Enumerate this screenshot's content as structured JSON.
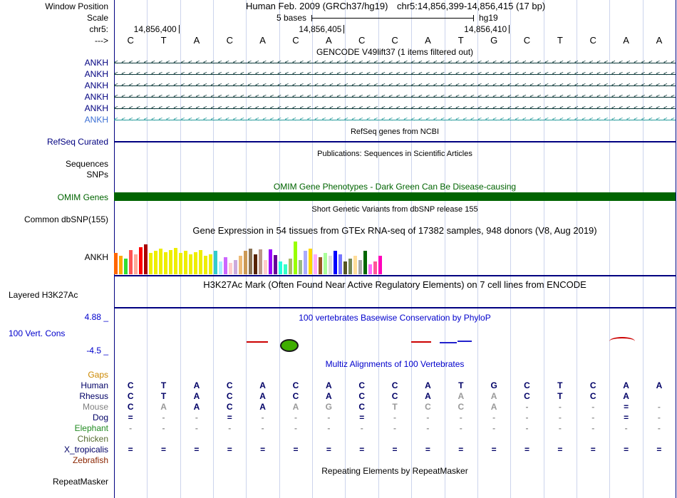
{
  "header": {
    "window_position_label": "Window Position",
    "assembly": "Human Feb. 2009 (GRCh37/hg19)",
    "position": "chr5:14,856,399-14,856,415 (17 bp)",
    "scale_label": "Scale",
    "scale_value": "5 bases",
    "scale_genome": "hg19",
    "chrom_label": "chr5:",
    "coords": [
      "14,856,400",
      "14,856,405",
      "14,856,410"
    ],
    "strand_label": "--->"
  },
  "sequence": [
    "C",
    "T",
    "A",
    "C",
    "A",
    "C",
    "A",
    "C",
    "C",
    "A",
    "T",
    "G",
    "C",
    "T",
    "C",
    "A",
    "A"
  ],
  "gencode": {
    "title": "GENCODE V49lift37 (1 items filtered out)",
    "transcripts": [
      {
        "label": "ANKH",
        "label_color": "#000080",
        "line_color": "#0d3a3a"
      },
      {
        "label": "ANKH",
        "label_color": "#000080",
        "line_color": "#0d3a3a"
      },
      {
        "label": "ANKH",
        "label_color": "#000080",
        "line_color": "#0d3a3a"
      },
      {
        "label": "ANKH",
        "label_color": "#000080",
        "line_color": "#0d3a3a"
      },
      {
        "label": "ANKH",
        "label_color": "#000080",
        "line_color": "#0d3a3a"
      },
      {
        "label": "ANKH",
        "label_color": "#3b6fd4",
        "line_color": "#2a9d9d"
      }
    ]
  },
  "refseq": {
    "title": "RefSeq genes from NCBI",
    "track_label": "RefSeq Curated"
  },
  "publications": {
    "title": "Publications: Sequences in Scientific Articles",
    "rows": [
      "Sequences",
      "SNPs"
    ]
  },
  "omim": {
    "title": "OMIM Gene Phenotypes - Dark Green Can Be Disease-causing",
    "track_label": "OMIM Genes",
    "bar_color": "#006400"
  },
  "dbsnp": {
    "title": "Short Genetic Variants from dbSNP release 155",
    "track_label": "Common dbSNP(155)"
  },
  "gtex": {
    "title": "Gene Expression in 54 tissues from GTEx RNA-seq of 17382 samples, 948 donors (V8, Aug 2019)",
    "track_label": "ANKH",
    "chart": {
      "type": "bar",
      "colors": [
        "#FF6600",
        "#FFAA00",
        "#33DD33",
        "#FF5555",
        "#FFAA99",
        "#FF0000",
        "#AA0000",
        "#EEEE00",
        "#EEEE00",
        "#EEEE00",
        "#EEEE00",
        "#EEEE00",
        "#EEEE00",
        "#EEEE00",
        "#EEEE00",
        "#EEEE00",
        "#EEEE00",
        "#EEEE00",
        "#EEEE00",
        "#EEEE00",
        "#33CCCC",
        "#AAEEFF",
        "#CC66FF",
        "#FFCCCC",
        "#CCAADD",
        "#EEBB77",
        "#CC9955",
        "#8B7355",
        "#552200",
        "#BB9988",
        "#FFCCCC",
        "#9900FF",
        "#660099",
        "#22FFDD",
        "#33FFC9",
        "#AABB66",
        "#99FF00",
        "#99BB88",
        "#AAAAFF",
        "#FFD700",
        "#FFAAFF",
        "#995522",
        "#AAFF99",
        "#DDDDDD",
        "#0000FF",
        "#7777FF",
        "#555522",
        "#778855",
        "#FFDD99",
        "#AAAAAA",
        "#006600",
        "#FF66FF",
        "#FF5599",
        "#FF00BB"
      ],
      "values": [
        30,
        26,
        22,
        34,
        28,
        38,
        42,
        30,
        33,
        36,
        31,
        34,
        37,
        30,
        33,
        28,
        31,
        34,
        26,
        28,
        33,
        18,
        24,
        16,
        20,
        26,
        33,
        36,
        28,
        35,
        20,
        35,
        27,
        18,
        14,
        22,
        46,
        20,
        33,
        36,
        28,
        24,
        30,
        26,
        33,
        28,
        18,
        22,
        26,
        20,
        33,
        14,
        18,
        26
      ]
    }
  },
  "h3k27ac": {
    "title": "H3K27Ac Mark (Often Found Near Active Regulatory Elements) on 7 cell lines from ENCODE",
    "track_label": "Layered H3K27Ac"
  },
  "phylop": {
    "title": "100 vertebrates Basewise Conservation by PhyloP",
    "track_label": "100 Vert. Cons",
    "max_label": "4.88 _",
    "min_label": "-4.5 _"
  },
  "multiz": {
    "title": "Multiz Alignments of 100 Vertebrates",
    "rows": [
      {
        "label": "Gaps",
        "label_color": "#cc8800",
        "cells": [
          "",
          "",
          "",
          "",
          "",
          "",
          "",
          "",
          "",
          "",
          "",
          "",
          "",
          "",
          "",
          "",
          ""
        ],
        "muted": []
      },
      {
        "label": "Human",
        "label_color": "#000066",
        "cells": [
          "C",
          "T",
          "A",
          "C",
          "A",
          "C",
          "A",
          "C",
          "C",
          "A",
          "T",
          "G",
          "C",
          "T",
          "C",
          "A",
          "A"
        ],
        "muted": []
      },
      {
        "label": "Rhesus",
        "label_color": "#000066",
        "cells": [
          "C",
          "T",
          "A",
          "C",
          "A",
          "C",
          "A",
          "C",
          "C",
          "A",
          "A",
          "A",
          "C",
          "T",
          "C",
          "A",
          ""
        ],
        "muted": [
          10,
          11
        ]
      },
      {
        "label": "Mouse",
        "label_color": "#808080",
        "cells": [
          "C",
          "A",
          "A",
          "C",
          "A",
          "A",
          "G",
          "C",
          "T",
          "C",
          "C",
          "A",
          "-",
          "-",
          "-",
          "=",
          "-"
        ],
        "muted": [
          1,
          5,
          6,
          8,
          9,
          10,
          11,
          12,
          13,
          14,
          16
        ]
      },
      {
        "label": "Dog",
        "label_color": "#000066",
        "cells": [
          "=",
          "-",
          "-",
          "=",
          "-",
          "-",
          "-",
          "=",
          "-",
          "-",
          "-",
          "-",
          "-",
          "-",
          "-",
          "=",
          "-"
        ],
        "muted": [
          1,
          2,
          4,
          5,
          6,
          8,
          9,
          10,
          11,
          12,
          13,
          14,
          16
        ]
      },
      {
        "label": "Elephant",
        "label_color": "#228B22",
        "cells": [
          "-",
          "-",
          "-",
          "-",
          "-",
          "-",
          "-",
          "-",
          "-",
          "-",
          "-",
          "-",
          "-",
          "-",
          "-",
          "-",
          "-"
        ],
        "muted": [
          0,
          1,
          2,
          3,
          4,
          5,
          6,
          7,
          8,
          9,
          10,
          11,
          12,
          13,
          14,
          15,
          16
        ]
      },
      {
        "label": "Chicken",
        "label_color": "#556B2F",
        "cells": [
          "",
          "",
          "",
          "",
          "",
          "",
          "",
          "",
          "",
          "",
          "",
          "",
          "",
          "",
          "",
          "",
          ""
        ],
        "muted": []
      },
      {
        "label": "X_tropicalis",
        "label_color": "#000066",
        "cells": [
          "=",
          "=",
          "=",
          "=",
          "=",
          "=",
          "=",
          "=",
          "=",
          "=",
          "=",
          "=",
          "=",
          "=",
          "=",
          "=",
          "="
        ],
        "muted": []
      },
      {
        "label": "Zebrafish",
        "label_color": "#8B2500",
        "cells": [
          "",
          "",
          "",
          "",
          "",
          "",
          "",
          "",
          "",
          "",
          "",
          "",
          "",
          "",
          "",
          "",
          ""
        ],
        "muted": []
      }
    ]
  },
  "repeatmasker": {
    "title": "Repeating Elements by RepeatMasker",
    "track_label": "RepeatMasker"
  }
}
